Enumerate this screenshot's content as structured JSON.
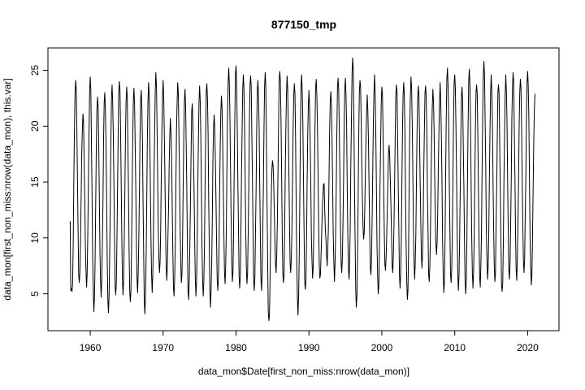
{
  "chart_data": {
    "type": "line",
    "title": "877150_tmp",
    "xlabel": "data_mon$Date[first_non_miss:nrow(data_mon)]",
    "ylabel": "data_mon[first_non_miss:nrow(data_mon), this.var]",
    "xlim": [
      1954.2,
      2024.3
    ],
    "ylim": [
      1.7,
      27.0
    ],
    "x_ticks": [
      1960,
      1970,
      1980,
      1990,
      2000,
      2010,
      2020
    ],
    "x_tick_labels": [
      "1960",
      "1970",
      "1980",
      "1990",
      "2000",
      "2010",
      "2020"
    ],
    "y_ticks": [
      5,
      10,
      15,
      20,
      25
    ],
    "y_tick_labels": [
      "5",
      "10",
      "15",
      "20",
      "25"
    ],
    "grid": false,
    "legend": "none",
    "series": [
      {
        "color": "#000000",
        "x_start": 1957.25,
        "x_step": 0.0833333,
        "annual_cycle": {
          "phase_month_of_peak": 0,
          "description": "monthly temperature, peaks in Jan (~23-25), troughs in Jul (~5-7)"
        },
        "yearly_peaks": [
          [
            1957,
            11.5
          ],
          [
            1958,
            24.1
          ],
          [
            1959,
            21.1
          ],
          [
            1960,
            24.4
          ],
          [
            1961,
            22.6
          ],
          [
            1962,
            23.0
          ],
          [
            1963,
            23.7
          ],
          [
            1964,
            24.0
          ],
          [
            1965,
            23.5
          ],
          [
            1966,
            23.4
          ],
          [
            1967,
            23.2
          ],
          [
            1968,
            23.9
          ],
          [
            1969,
            24.8
          ],
          [
            1970,
            24.1
          ],
          [
            1971,
            20.7
          ],
          [
            1972,
            23.9
          ],
          [
            1973,
            23.3
          ],
          [
            1974,
            22.0
          ],
          [
            1975,
            23.6
          ],
          [
            1976,
            23.8
          ],
          [
            1977,
            21.0
          ],
          [
            1978,
            22.7
          ],
          [
            1979,
            25.2
          ],
          [
            1980,
            25.4
          ],
          [
            1981,
            24.6
          ],
          [
            1982,
            24.5
          ],
          [
            1983,
            24.1
          ],
          [
            1984,
            24.8
          ],
          [
            1985,
            16.9
          ],
          [
            1986,
            24.9
          ],
          [
            1987,
            24.5
          ],
          [
            1988,
            23.8
          ],
          [
            1989,
            24.6
          ],
          [
            1990,
            23.2
          ],
          [
            1991,
            24.2
          ],
          [
            1992,
            14.8
          ],
          [
            1993,
            23.1
          ],
          [
            1994,
            24.3
          ],
          [
            1995,
            24.3
          ],
          [
            1996,
            26.1
          ],
          [
            1997,
            24.1
          ],
          [
            1998,
            22.8
          ],
          [
            1999,
            24.6
          ],
          [
            2000,
            23.5
          ],
          [
            2001,
            18.3
          ],
          [
            2002,
            23.7
          ],
          [
            2003,
            23.9
          ],
          [
            2004,
            24.4
          ],
          [
            2005,
            23.6
          ],
          [
            2006,
            23.6
          ],
          [
            2007,
            23.3
          ],
          [
            2008,
            23.9
          ],
          [
            2009,
            25.2
          ],
          [
            2010,
            24.6
          ],
          [
            2011,
            23.5
          ],
          [
            2012,
            25.1
          ],
          [
            2013,
            23.7
          ],
          [
            2014,
            25.8
          ],
          [
            2015,
            24.6
          ],
          [
            2016,
            23.7
          ],
          [
            2017,
            24.6
          ],
          [
            2018,
            24.8
          ],
          [
            2019,
            24.2
          ],
          [
            2020,
            24.9
          ],
          [
            2021,
            22.9
          ]
        ],
        "yearly_troughs": [
          [
            1957,
            5.2
          ],
          [
            1958,
            6.0
          ],
          [
            1959,
            5.6
          ],
          [
            1960,
            3.4
          ],
          [
            1961,
            4.7
          ],
          [
            1962,
            3.3
          ],
          [
            1963,
            4.9
          ],
          [
            1964,
            4.9
          ],
          [
            1965,
            4.3
          ],
          [
            1966,
            5.1
          ],
          [
            1967,
            3.2
          ],
          [
            1968,
            5.1
          ],
          [
            1969,
            6.9
          ],
          [
            1970,
            6.2
          ],
          [
            1971,
            4.8
          ],
          [
            1972,
            6.0
          ],
          [
            1973,
            4.5
          ],
          [
            1974,
            4.8
          ],
          [
            1975,
            4.8
          ],
          [
            1976,
            3.8
          ],
          [
            1977,
            5.3
          ],
          [
            1978,
            5.9
          ],
          [
            1979,
            6.1
          ],
          [
            1980,
            5.5
          ],
          [
            1981,
            5.9
          ],
          [
            1982,
            5.3
          ],
          [
            1983,
            5.3
          ],
          [
            1984,
            2.6
          ],
          [
            1985,
            6.9
          ],
          [
            1986,
            6.0
          ],
          [
            1987,
            6.9
          ],
          [
            1988,
            3.1
          ],
          [
            1989,
            5.4
          ],
          [
            1990,
            6.4
          ],
          [
            1991,
            6.4
          ],
          [
            1992,
            7.5
          ],
          [
            1993,
            6.1
          ],
          [
            1994,
            6.9
          ],
          [
            1995,
            6.3
          ],
          [
            1996,
            3.8
          ],
          [
            1997,
            9.9
          ],
          [
            1998,
            6.7
          ],
          [
            1999,
            5.0
          ],
          [
            2000,
            7.1
          ],
          [
            2001,
            6.9
          ],
          [
            2002,
            5.5
          ],
          [
            2003,
            4.5
          ],
          [
            2004,
            6.3
          ],
          [
            2005,
            7.3
          ],
          [
            2006,
            6.1
          ],
          [
            2007,
            8.5
          ],
          [
            2008,
            5.1
          ],
          [
            2009,
            6.0
          ],
          [
            2010,
            5.3
          ],
          [
            2011,
            5.0
          ],
          [
            2012,
            5.5
          ],
          [
            2013,
            5.6
          ],
          [
            2014,
            6.3
          ],
          [
            2015,
            6.1
          ],
          [
            2016,
            5.2
          ],
          [
            2017,
            6.3
          ],
          [
            2018,
            6.2
          ],
          [
            2019,
            6.9
          ],
          [
            2020,
            5.8
          ]
        ]
      }
    ]
  }
}
